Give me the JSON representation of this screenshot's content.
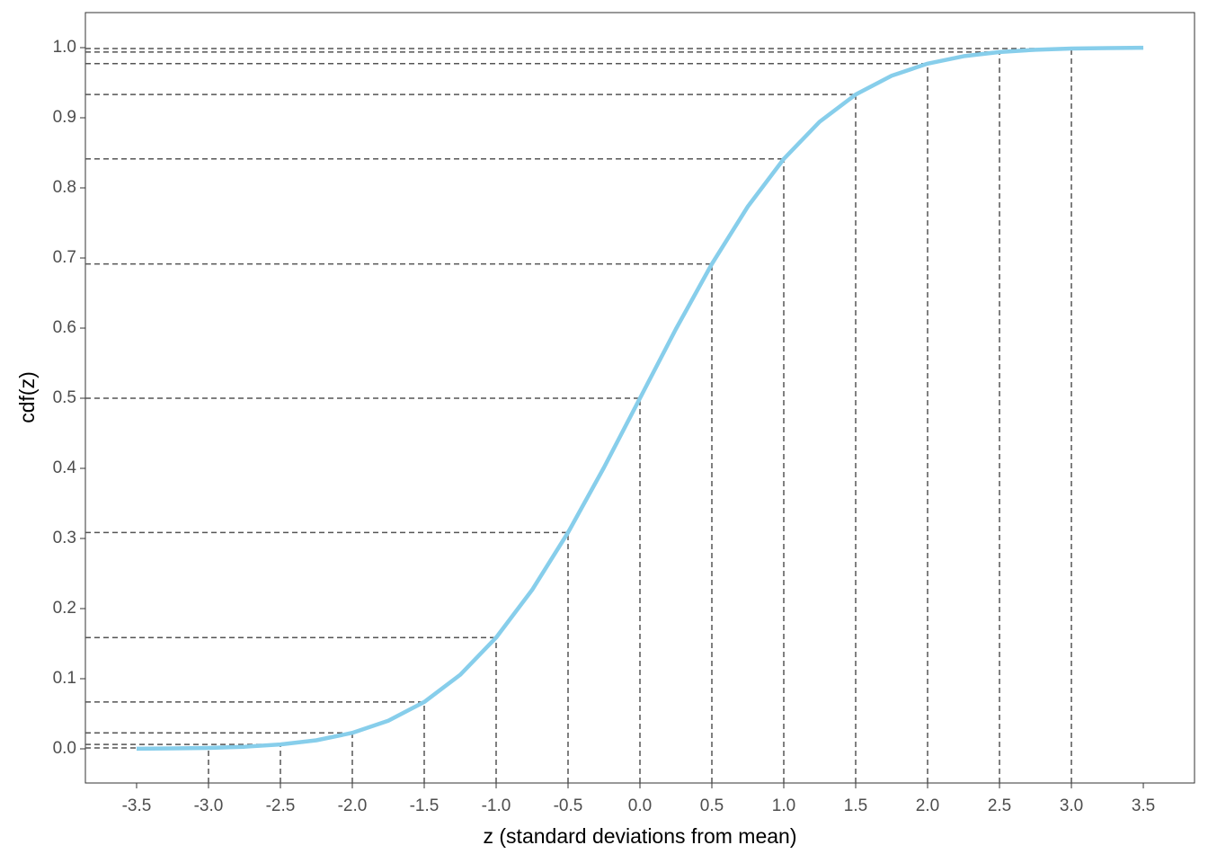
{
  "chart_data": {
    "type": "line",
    "x_label": "z (standard deviations from mean)",
    "y_label": "cdf(z)",
    "x": [
      -3.5,
      -3.25,
      -3,
      -2.75,
      -2.5,
      -2.25,
      -2,
      -1.75,
      -1.5,
      -1.25,
      -1,
      -0.75,
      -0.5,
      -0.25,
      0,
      0.25,
      0.5,
      0.75,
      1,
      1.25,
      1.5,
      1.75,
      2,
      2.25,
      2.5,
      2.75,
      3,
      3.25,
      3.5
    ],
    "values": [
      0.00023,
      0.00058,
      0.00135,
      0.00298,
      0.00621,
      0.0122,
      0.0228,
      0.0401,
      0.0668,
      0.1056,
      0.1587,
      0.2266,
      0.3085,
      0.4013,
      0.5,
      0.5987,
      0.6915,
      0.7734,
      0.8413,
      0.8944,
      0.9332,
      0.9599,
      0.9772,
      0.9878,
      0.9938,
      0.997,
      0.99865,
      0.99942,
      0.99977
    ],
    "color": "#87ceeb",
    "guides": {
      "x": [
        -3,
        -2.5,
        -2,
        -1.5,
        -1,
        -0.5,
        0,
        0.5,
        1,
        1.5,
        2,
        2.5,
        3
      ],
      "values": [
        0.00135,
        0.00621,
        0.0228,
        0.0668,
        0.1587,
        0.3085,
        0.5,
        0.6915,
        0.8413,
        0.9332,
        0.9772,
        0.9938,
        0.99865
      ],
      "color": "#555555"
    },
    "xlim": [
      -3.856,
      3.856
    ],
    "ylim": [
      -0.0487,
      1.05
    ],
    "xticks": [
      {
        "value": -3.5,
        "label": "-3.5"
      },
      {
        "value": -3,
        "label": "-3.0"
      },
      -2.5,
      {
        "value": -2,
        "label": "-2.0"
      },
      -1.5,
      {
        "value": -1,
        "label": "-1.0"
      },
      -0.5,
      {
        "value": 0,
        "label": "0.0"
      },
      0.5,
      {
        "value": 1,
        "label": "1.0"
      },
      1.5,
      {
        "value": 2,
        "label": "2.0"
      },
      2.5,
      {
        "value": 3,
        "label": "3.0"
      },
      3.5
    ],
    "yticks": [
      {
        "value": 0,
        "label": "0.0"
      },
      0.1,
      0.2,
      0.3,
      0.4,
      0.5,
      0.6,
      0.7,
      0.8,
      0.9,
      {
        "value": 1,
        "label": "1.0"
      }
    ]
  }
}
